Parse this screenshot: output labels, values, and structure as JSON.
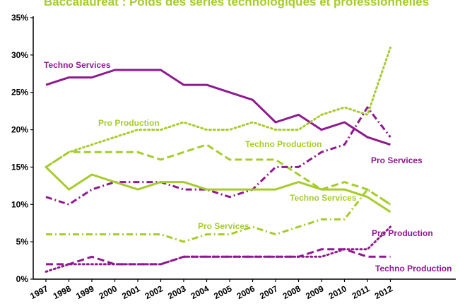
{
  "chart_data": {
    "type": "line",
    "title": "Baccalauréat : Poids des séries technologiques et professionnelles",
    "categories": [
      "1997",
      "1998",
      "1999",
      "2000",
      "2001",
      "2002",
      "2003",
      "2004",
      "2005",
      "2006",
      "2007",
      "2008",
      "2009",
      "2010",
      "2011",
      "2012"
    ],
    "ylim": [
      0,
      35
    ],
    "yticks": [
      "0%",
      "5%",
      "10%",
      "15%",
      "20%",
      "25%",
      "30%",
      "35%"
    ],
    "colors": {
      "purple": "#8e1a8e",
      "green": "#a6cc2c"
    },
    "series": [
      {
        "name": "Techno Services",
        "style": "solid",
        "color": "#8e1a8e",
        "values": [
          26,
          27,
          27,
          28,
          28,
          28,
          26,
          26,
          25,
          24,
          21,
          22,
          20,
          21,
          19,
          18
        ]
      },
      {
        "name": "Pro Production",
        "style": "dotted",
        "color": "#a6cc2c",
        "values": [
          15,
          17,
          18,
          19,
          20,
          20,
          21,
          20,
          20,
          21,
          20,
          20,
          22,
          23,
          22,
          31
        ]
      },
      {
        "name": "Techno Production",
        "style": "dashed",
        "color": "#a6cc2c",
        "values": [
          15,
          17,
          17,
          17,
          17,
          16,
          17,
          18,
          16,
          16,
          16,
          14,
          12,
          13,
          12,
          10
        ]
      },
      {
        "name": "Pro Services",
        "style": "dashdot",
        "color": "#8e1a8e",
        "values": [
          11,
          10,
          12,
          13,
          13,
          13,
          12,
          12,
          11,
          12,
          15,
          15,
          17,
          18,
          23,
          19
        ]
      },
      {
        "name": "Techno Services",
        "style": "solid",
        "color": "#a6cc2c",
        "values": [
          15,
          12,
          14,
          13,
          12,
          13,
          13,
          12,
          12,
          12,
          12,
          13,
          12,
          12,
          11,
          9
        ]
      },
      {
        "name": "Pro Services",
        "style": "dashdot",
        "color": "#a6cc2c",
        "values": [
          6,
          6,
          6,
          6,
          6,
          6,
          5,
          6,
          6,
          7,
          6,
          7,
          8,
          8,
          12,
          10
        ]
      },
      {
        "name": "Pro Production",
        "style": "dotted",
        "color": "#8e1a8e",
        "values": [
          1,
          2,
          2,
          2,
          2,
          2,
          3,
          3,
          3,
          3,
          3,
          3,
          3,
          4,
          4,
          7
        ]
      },
      {
        "name": "Techno Production",
        "style": "dashed",
        "color": "#8e1a8e",
        "values": [
          2,
          2,
          3,
          2,
          2,
          2,
          3,
          3,
          3,
          3,
          3,
          3,
          4,
          4,
          3,
          3
        ]
      }
    ]
  }
}
